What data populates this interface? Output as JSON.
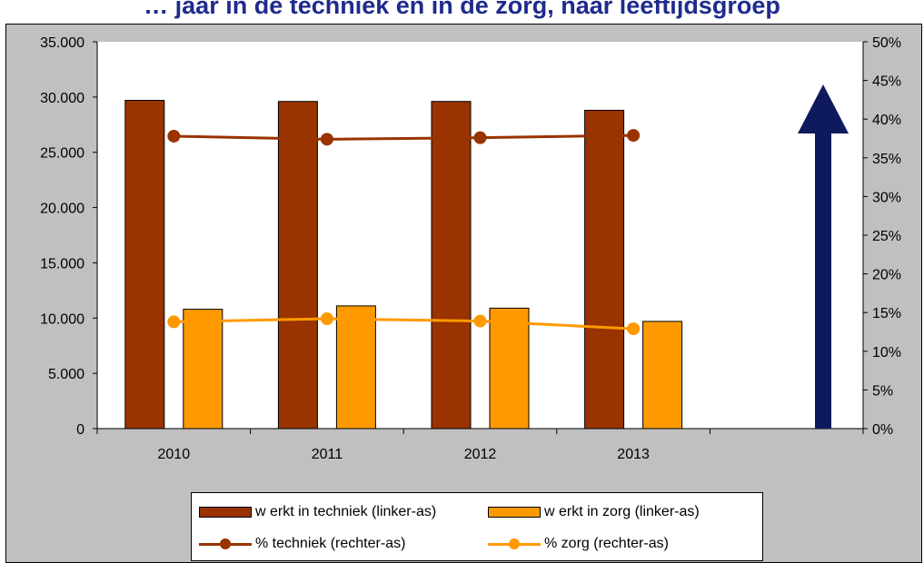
{
  "title": "… jaar in de techniek en in de zorg, naar leeftijdsgroep",
  "colors": {
    "techniek": "#993300",
    "zorg": "#ff9900",
    "arrow": "#0f1a5e",
    "plot_bg": "#ffffff",
    "frame_bg": "#c0c0c0"
  },
  "chart_data": {
    "type": "bar",
    "categories": [
      "2010",
      "2011",
      "2012",
      "2013",
      ""
    ],
    "series": [
      {
        "name": "w erkt in techniek (linker-as)",
        "kind": "bar",
        "axis": "left",
        "values": [
          29700,
          29600,
          29600,
          28800,
          null
        ]
      },
      {
        "name": "w erkt in zorg (linker-as)",
        "kind": "bar",
        "axis": "left",
        "values": [
          10800,
          11100,
          10900,
          9700,
          null
        ]
      },
      {
        "name": "% techniek (rechter-as)",
        "kind": "line",
        "axis": "right",
        "values": [
          37.8,
          37.4,
          37.6,
          37.9,
          null
        ]
      },
      {
        "name": "% zorg (rechter-as)",
        "kind": "line",
        "axis": "right",
        "values": [
          13.8,
          14.2,
          13.9,
          12.9,
          null
        ]
      }
    ],
    "y_left": {
      "range": [
        0,
        35000
      ],
      "ticks": [
        "0",
        "5.000",
        "10.000",
        "15.000",
        "20.000",
        "25.000",
        "30.000",
        "35.000"
      ]
    },
    "y_right": {
      "range": [
        0,
        50
      ],
      "ticks": [
        "0%",
        "5%",
        "10%",
        "15%",
        "20%",
        "25%",
        "30%",
        "35%",
        "40%",
        "45%",
        "50%"
      ]
    },
    "legend_position": "bottom",
    "annotation": "upward-arrow"
  }
}
